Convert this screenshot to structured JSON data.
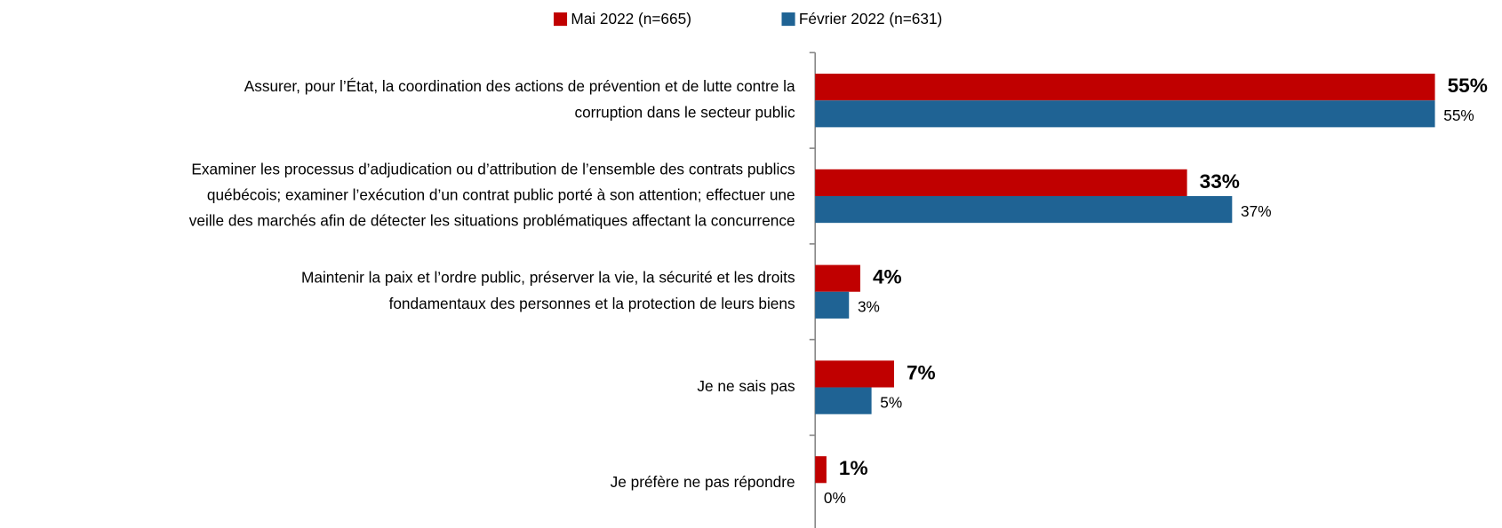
{
  "chart_data": {
    "type": "bar",
    "orientation": "horizontal",
    "categories": [
      [
        "Assurer, pour l’État, la coordination des actions de prévention et de lutte contre la",
        "corruption dans le secteur public"
      ],
      [
        "Examiner les processus d’adjudication ou d’attribution de l’ensemble des contrats publics",
        "québécois; examiner l’exécution d’un contrat public porté à son attention; effectuer une",
        "veille des marchés afin de détecter les situations problématiques affectant la concurrence"
      ],
      [
        "Maintenir la paix et l’ordre public, préserver la vie, la sécurité et les droits",
        "fondamentaux des personnes et la protection de leurs biens"
      ],
      [
        "Je ne sais pas"
      ],
      [
        "Je préfère ne pas répondre"
      ]
    ],
    "series": [
      {
        "name": "Mai 2022 (n=665)",
        "color": "#c00000",
        "values": [
          55,
          33,
          4,
          7,
          1
        ],
        "value_labels": [
          "55%",
          "33%",
          "4%",
          "7%",
          "1%"
        ]
      },
      {
        "name": "Février 2022 (n=631)",
        "color": "#1f6394",
        "values": [
          55,
          37,
          3,
          5,
          0
        ],
        "value_labels": [
          "55%",
          "37%",
          "3%",
          "5%",
          "0%"
        ]
      }
    ],
    "legend": "top"
  }
}
